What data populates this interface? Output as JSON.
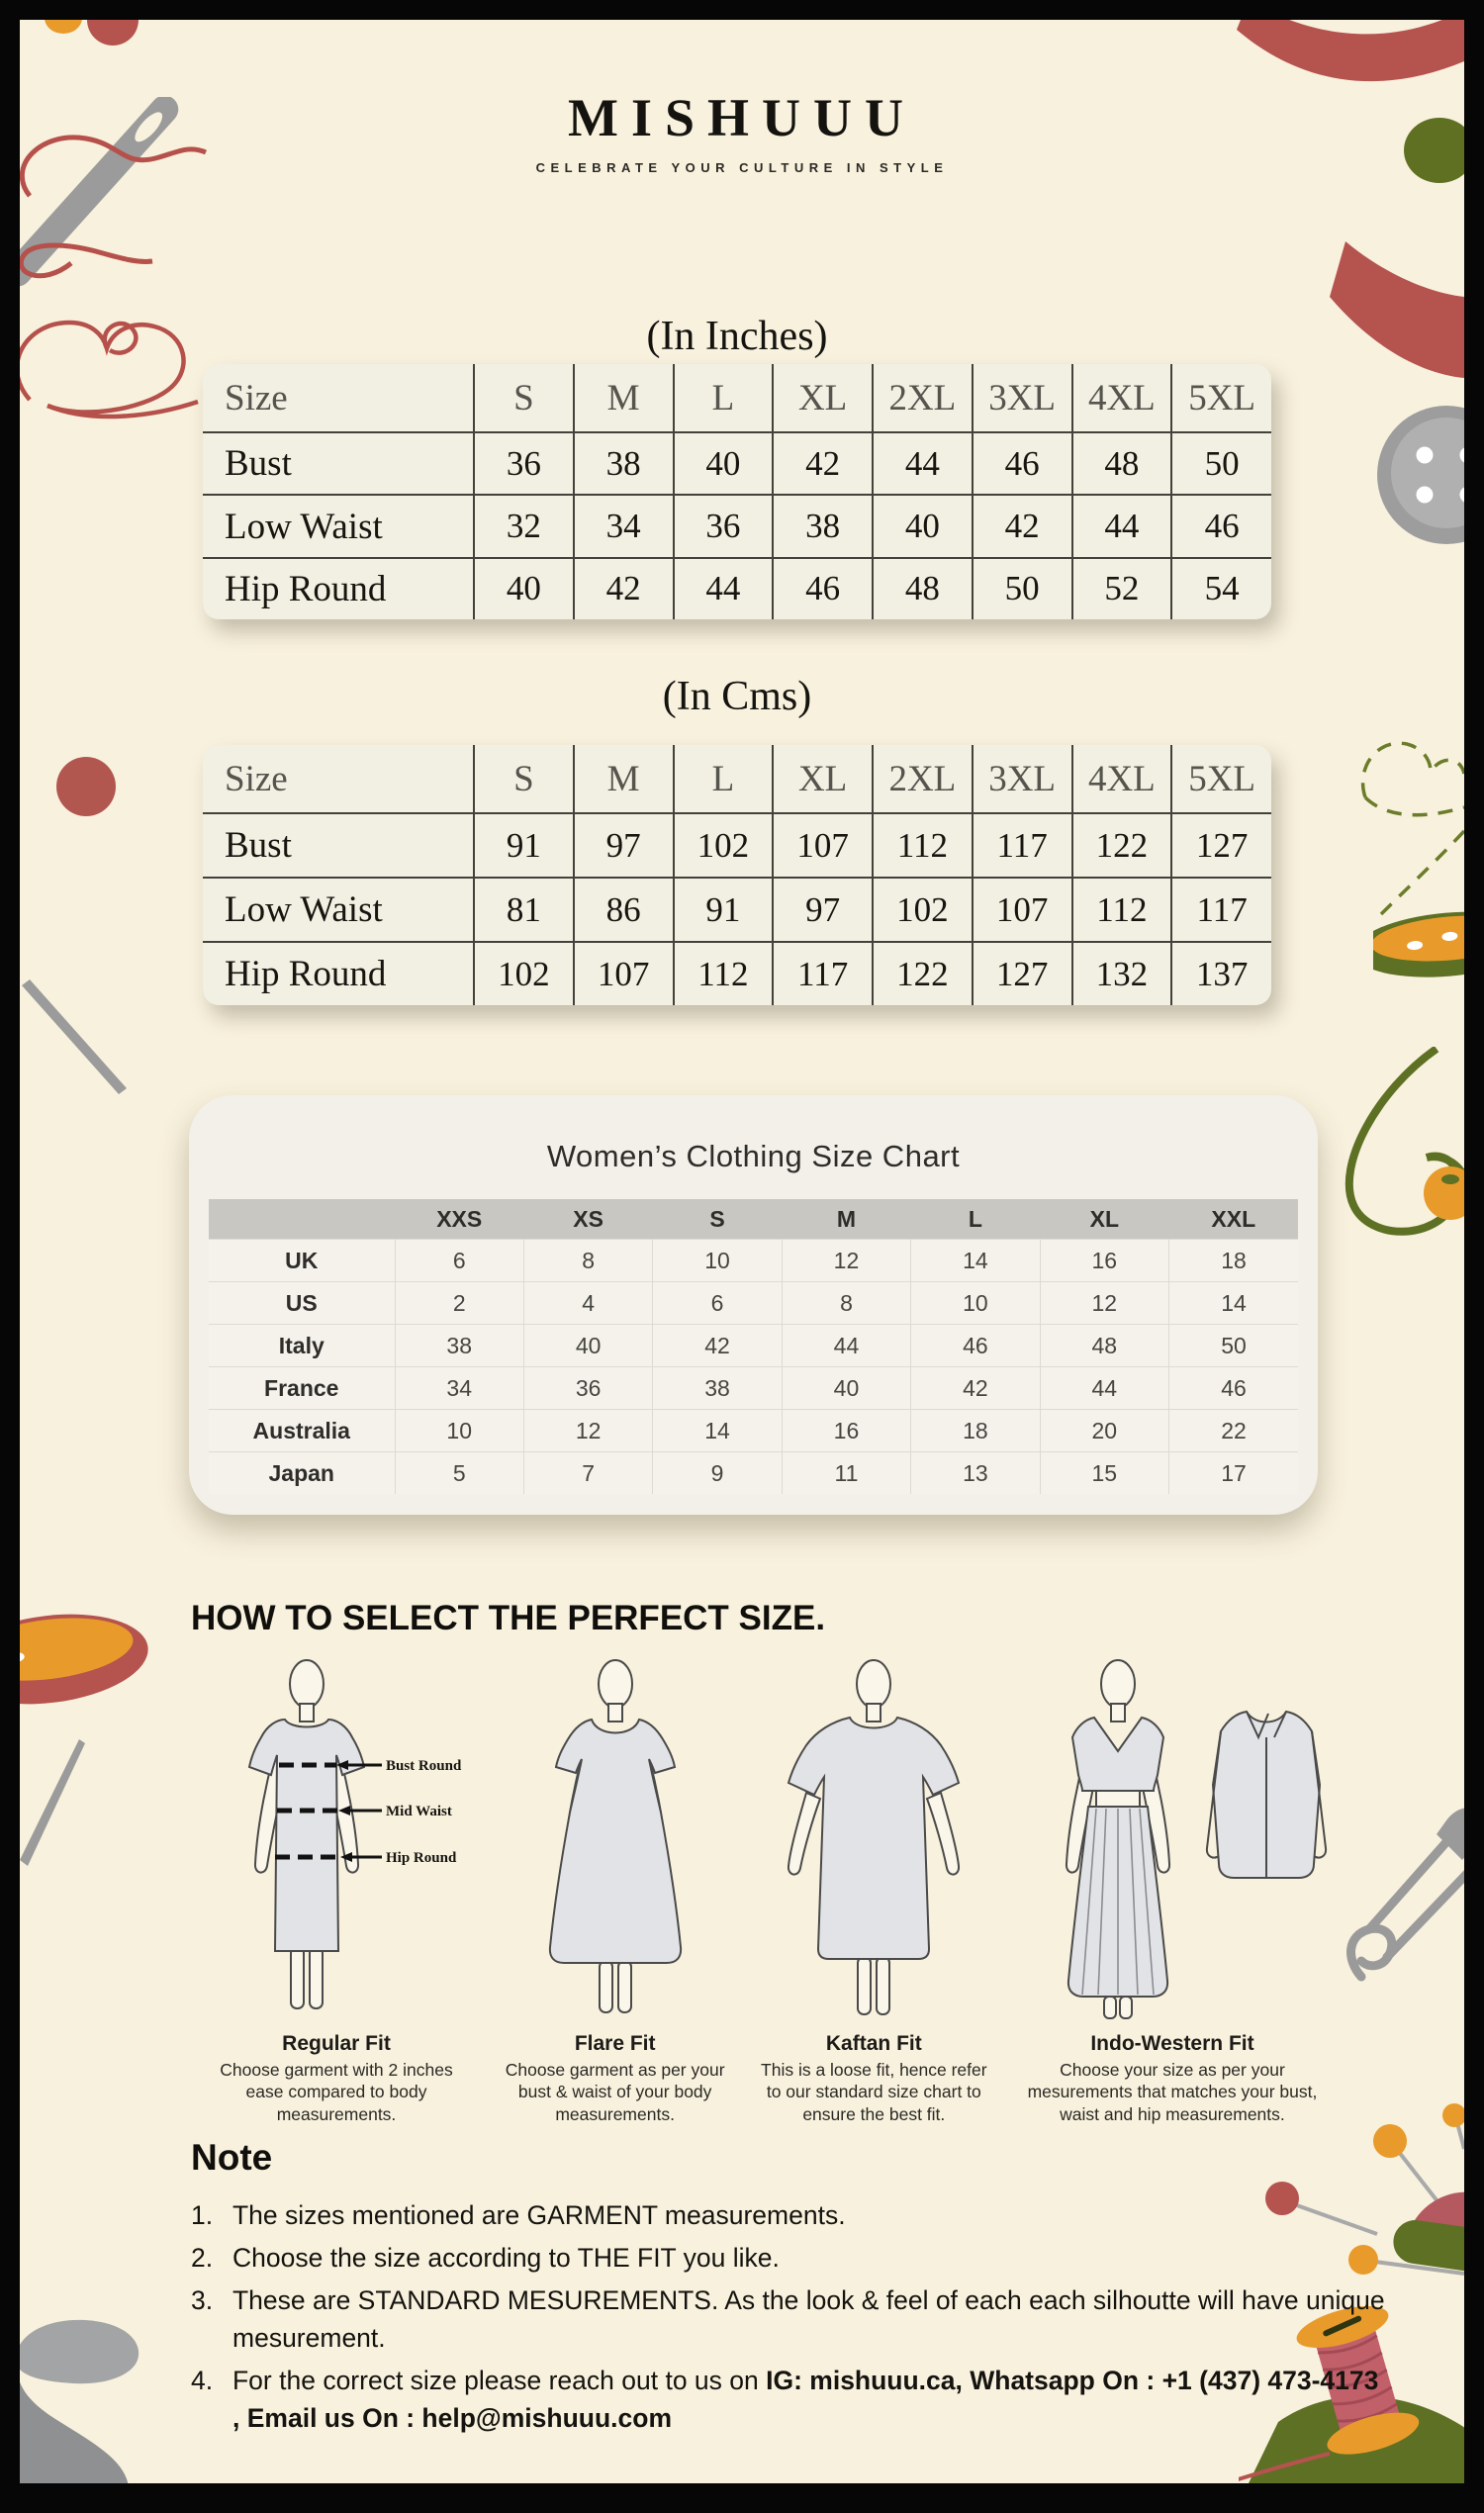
{
  "header": {
    "brand": "MISHUUU",
    "tagline": "CELEBRATE YOUR CULTURE IN STYLE"
  },
  "inches_table": {
    "title": "(In Inches)",
    "headers": [
      "Size",
      "S",
      "M",
      "L",
      "XL",
      "2XL",
      "3XL",
      "4XL",
      "5XL"
    ],
    "rows": [
      [
        "Bust",
        "36",
        "38",
        "40",
        "42",
        "44",
        "46",
        "48",
        "50"
      ],
      [
        "Low Waist",
        "32",
        "34",
        "36",
        "38",
        "40",
        "42",
        "44",
        "46"
      ],
      [
        "Hip Round",
        "40",
        "42",
        "44",
        "46",
        "48",
        "50",
        "52",
        "54"
      ]
    ]
  },
  "cms_table": {
    "title": "(In Cms)",
    "headers": [
      "Size",
      "S",
      "M",
      "L",
      "XL",
      "2XL",
      "3XL",
      "4XL",
      "5XL"
    ],
    "rows": [
      [
        "Bust",
        "91",
        "97",
        "102",
        "107",
        "112",
        "117",
        "122",
        "127"
      ],
      [
        "Low Waist",
        "81",
        "86",
        "91",
        "97",
        "102",
        "107",
        "112",
        "117"
      ],
      [
        "Hip Round",
        "102",
        "107",
        "112",
        "117",
        "122",
        "127",
        "132",
        "137"
      ]
    ]
  },
  "intl_table": {
    "title": "Women’s Clothing Size Chart",
    "headers": [
      "",
      "XXS",
      "XS",
      "S",
      "M",
      "L",
      "XL",
      "XXL"
    ],
    "rows": [
      [
        "UK",
        "6",
        "8",
        "10",
        "12",
        "14",
        "16",
        "18"
      ],
      [
        "US",
        "2",
        "4",
        "6",
        "8",
        "10",
        "12",
        "14"
      ],
      [
        "Italy",
        "38",
        "40",
        "42",
        "44",
        "46",
        "48",
        "50"
      ],
      [
        "France",
        "34",
        "36",
        "38",
        "40",
        "42",
        "44",
        "46"
      ],
      [
        "Australia",
        "10",
        "12",
        "14",
        "16",
        "18",
        "20",
        "22"
      ],
      [
        "Japan",
        "5",
        "7",
        "9",
        "11",
        "13",
        "15",
        "17"
      ]
    ]
  },
  "how_to_title": "HOW TO SELECT THE PERFECT SIZE.",
  "measure_labels": [
    "Bust Round",
    "Mid Waist",
    "Hip Round"
  ],
  "fits": [
    {
      "name": "Regular Fit",
      "desc": "Choose garment with 2 inches ease compared to body measurements."
    },
    {
      "name": "Flare Fit",
      "desc": "Choose garment as per your bust & waist of your body measurements."
    },
    {
      "name": "Kaftan Fit",
      "desc": "This is a loose fit, hence refer to our standard size chart to ensure the best fit."
    },
    {
      "name": "Indo-Western Fit",
      "desc": "Choose your size as per your mesurements that matches your bust, waist and hip measurements."
    }
  ],
  "note": {
    "title": "Note",
    "items": [
      {
        "text": "The sizes mentioned are GARMENT measurements.",
        "bold": ""
      },
      {
        "text": "Choose the size according to THE FIT you like.",
        "bold": ""
      },
      {
        "text": "These are STANDARD MESUREMENTS. As the look & feel of each each silhoutte will have unique mesurement.",
        "bold": ""
      },
      {
        "text": "For the correct size please reach out to us on ",
        "bold": "IG: mishuuu.ca, Whatsapp On : +1 (437) 473-4173 , Email us On : help@mishuuu.com"
      }
    ]
  },
  "colors": {
    "cream": "#f8f1dd",
    "frame_black": "#060606",
    "brick_red": "#b5534f",
    "orange": "#e89b2b",
    "olive": "#5d7024",
    "gray": "#9a9a9a",
    "rose_thread": "#c2606a",
    "header_band": "#c9c7c2"
  }
}
